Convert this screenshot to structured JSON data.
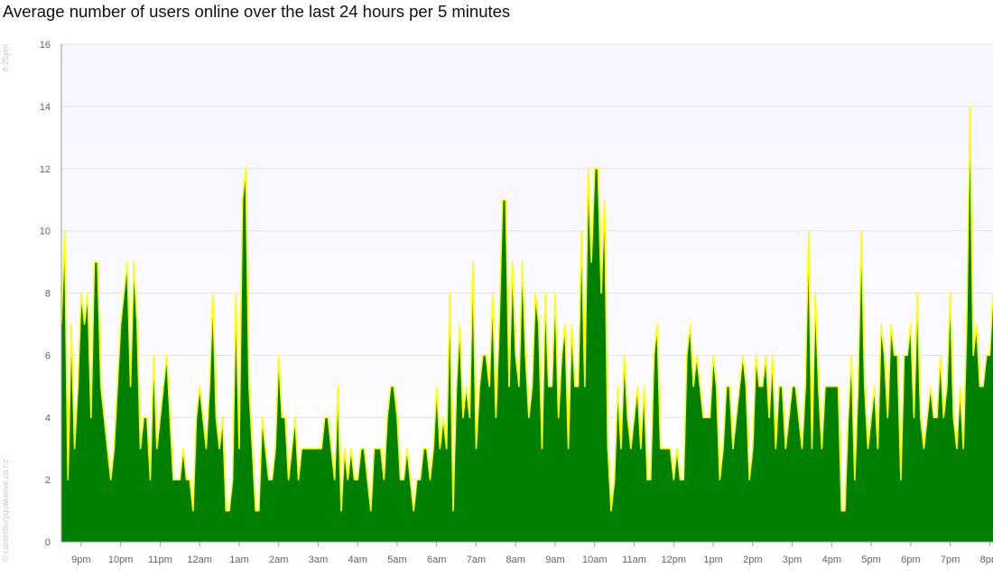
{
  "header": {
    "title": "Average number of users online over the last 24 hours per 5 minutes"
  },
  "side": {
    "timestamp": "8:25pm",
    "credit": "© canterburyquakelive.co.nz"
  },
  "colors": {
    "area": "#008000",
    "line": "#ffff00",
    "plot_bg_top": "#f7f5ff",
    "plot_bg_bottom": "#ffffff",
    "grid": "#e2e2ea"
  },
  "chart_data": {
    "type": "area",
    "title": "Average number of users online over the last 24 hours per 5 minutes",
    "xlabel": "",
    "ylabel": "",
    "ylim": [
      0,
      16
    ],
    "yticks": [
      0,
      2,
      4,
      6,
      8,
      10,
      12,
      14,
      16
    ],
    "xtick_labels": [
      "9pm",
      "10pm",
      "11pm",
      "12am",
      "1am",
      "2am",
      "3am",
      "4am",
      "5am",
      "6am",
      "7am",
      "8am",
      "9am",
      "10am",
      "11am",
      "12pm",
      "1pm",
      "2pm",
      "3pm",
      "4pm",
      "5pm",
      "6pm",
      "7pm",
      "8pm"
    ],
    "x_start": "8:30pm",
    "interval_minutes": 5,
    "grid": true,
    "values": [
      7,
      10,
      2,
      7,
      3,
      5,
      8,
      7,
      8,
      4,
      9,
      9,
      5,
      4,
      3,
      2,
      3,
      5,
      7,
      8,
      9,
      5,
      9,
      7,
      3,
      4,
      4,
      2,
      6,
      3,
      4,
      5,
      6,
      4,
      2,
      2,
      2,
      3,
      2,
      2,
      1,
      4,
      5,
      4,
      3,
      5,
      8,
      4,
      3,
      4,
      1,
      1,
      2,
      8,
      3,
      11,
      12,
      5,
      3,
      1,
      1,
      4,
      3,
      2,
      2,
      3,
      6,
      4,
      4,
      2,
      3,
      4,
      2,
      3,
      3,
      3,
      3,
      3,
      3,
      3,
      4,
      4,
      3,
      2,
      5,
      1,
      3,
      2,
      3,
      2,
      2,
      3,
      3,
      2,
      1,
      3,
      3,
      3,
      2,
      4,
      5,
      5,
      4,
      2,
      2,
      3,
      2,
      1,
      2,
      2,
      3,
      3,
      2,
      3,
      5,
      3,
      4,
      3,
      8,
      1,
      5,
      7,
      4,
      5,
      4,
      9,
      3,
      5,
      6,
      6,
      5,
      8,
      4,
      7,
      11,
      11,
      5,
      9,
      6,
      5,
      9,
      6,
      4,
      5,
      8,
      7,
      3,
      8,
      5,
      5,
      8,
      4,
      6,
      7,
      3,
      7,
      5,
      5,
      10,
      5,
      12,
      9,
      12,
      12,
      8,
      11,
      3,
      1,
      2,
      5,
      3,
      6,
      4,
      3,
      4,
      5,
      3,
      5,
      2,
      2,
      6,
      7,
      3,
      3,
      3,
      3,
      2,
      3,
      2,
      2,
      6,
      7,
      5,
      6,
      5,
      4,
      4,
      4,
      6,
      5,
      2,
      3,
      5,
      5,
      3,
      4,
      5,
      6,
      5,
      2,
      3,
      6,
      5,
      5,
      6,
      4,
      6,
      3,
      5,
      5,
      3,
      4,
      5,
      5,
      4,
      3,
      5,
      10,
      3,
      8,
      5,
      3,
      5,
      5,
      5,
      5,
      5,
      1,
      1,
      4,
      6,
      2,
      5,
      10,
      5,
      3,
      4,
      5,
      3,
      7,
      6,
      4,
      7,
      6,
      6,
      2,
      6,
      6,
      7,
      4,
      8,
      4,
      3,
      4,
      5,
      4,
      4,
      6,
      4,
      5,
      8,
      4,
      3,
      5,
      3,
      7,
      14,
      6,
      7,
      5,
      5,
      6,
      6,
      8
    ]
  }
}
